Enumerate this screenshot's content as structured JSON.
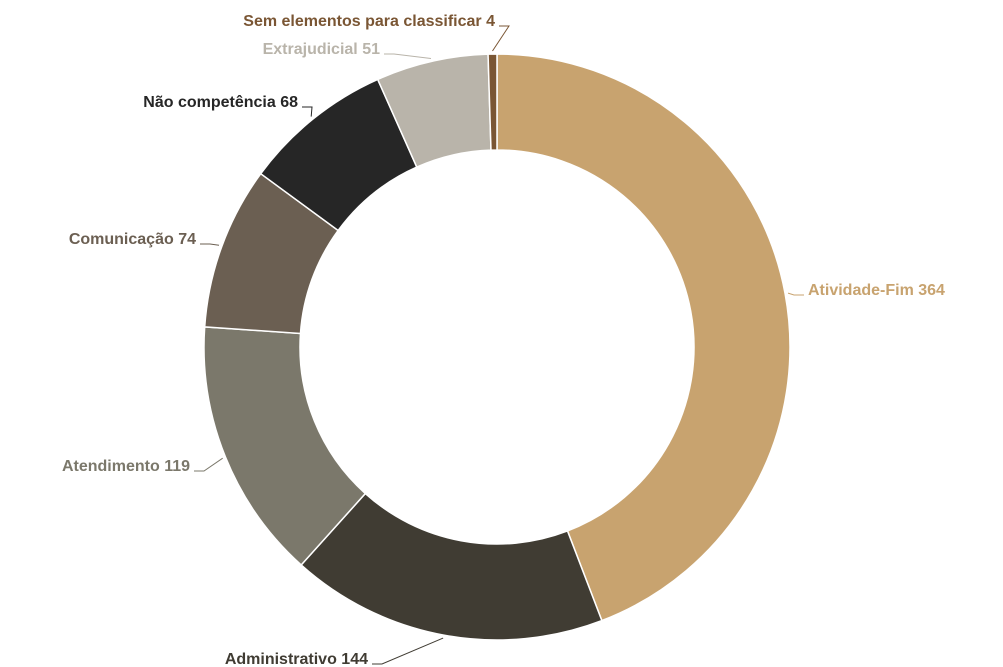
{
  "chart_data": {
    "type": "donut",
    "categories": [
      "Atividade-Fim",
      "Administrativo",
      "Atendimento",
      "Comunicação",
      "Não competência",
      "Extrajudicial",
      "Sem elementos para classificar"
    ],
    "values": [
      364,
      144,
      119,
      74,
      68,
      51,
      4
    ],
    "colors": [
      "#c8a36f",
      "#403c33",
      "#7b786b",
      "#6b5f52",
      "#262626",
      "#b9b4aa",
      "#7a5634"
    ]
  }
}
